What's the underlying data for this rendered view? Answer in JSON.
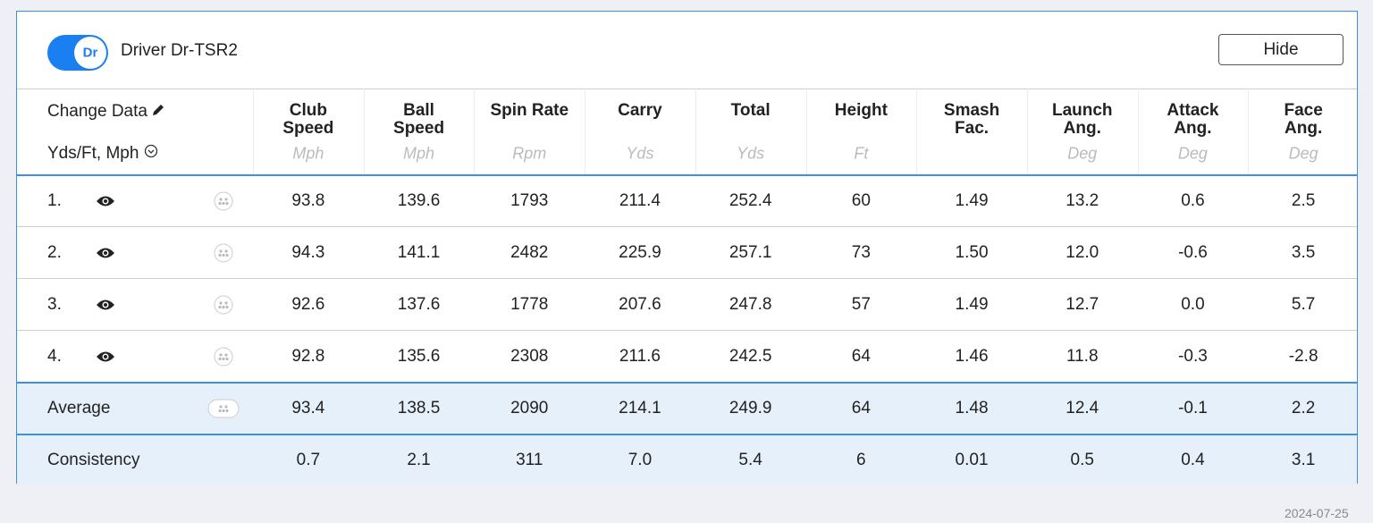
{
  "header": {
    "toggle_label": "Dr",
    "club_name": "Driver Dr-TSR2",
    "hide_button": "Hide"
  },
  "settings": {
    "change_data": "Change Data",
    "units": "Yds/Ft, Mph"
  },
  "columns": [
    {
      "label": [
        "Club",
        "Speed"
      ],
      "unit": "Mph"
    },
    {
      "label": [
        "Ball",
        "Speed"
      ],
      "unit": "Mph"
    },
    {
      "label": [
        "Spin Rate"
      ],
      "unit": "Rpm"
    },
    {
      "label": [
        "Carry"
      ],
      "unit": "Yds"
    },
    {
      "label": [
        "Total"
      ],
      "unit": "Yds"
    },
    {
      "label": [
        "Height"
      ],
      "unit": "Ft"
    },
    {
      "label": [
        "Smash",
        "Fac."
      ],
      "unit": null
    },
    {
      "label": [
        "Launch",
        "Ang."
      ],
      "unit": "Deg"
    },
    {
      "label": [
        "Attack",
        "Ang."
      ],
      "unit": "Deg"
    },
    {
      "label": [
        "Face",
        "Ang."
      ],
      "unit": "Deg"
    }
  ],
  "rows": [
    {
      "label": "1.",
      "values": [
        "93.8",
        "139.6",
        "1793",
        "211.4",
        "252.4",
        "60",
        "1.49",
        "13.2",
        "0.6",
        "2.5"
      ]
    },
    {
      "label": "2.",
      "values": [
        "94.3",
        "141.1",
        "2482",
        "225.9",
        "257.1",
        "73",
        "1.50",
        "12.0",
        "-0.6",
        "3.5"
      ]
    },
    {
      "label": "3.",
      "values": [
        "92.6",
        "137.6",
        "1778",
        "207.6",
        "247.8",
        "57",
        "1.49",
        "12.7",
        "0.0",
        "5.7"
      ]
    },
    {
      "label": "4.",
      "values": [
        "92.8",
        "135.6",
        "2308",
        "211.6",
        "242.5",
        "64",
        "1.46",
        "11.8",
        "-0.3",
        "-2.8"
      ]
    }
  ],
  "summary": [
    {
      "label": "Average",
      "values": [
        "93.4",
        "138.5",
        "2090",
        "214.1",
        "249.9",
        "64",
        "1.48",
        "12.4",
        "-0.1",
        "2.2"
      ]
    },
    {
      "label": "Consistency",
      "values": [
        "0.7",
        "2.1",
        "311",
        "7.0",
        "5.4",
        "6",
        "0.01",
        "0.5",
        "0.4",
        "3.1"
      ]
    }
  ],
  "footer": {
    "date": "2024-07-25"
  }
}
